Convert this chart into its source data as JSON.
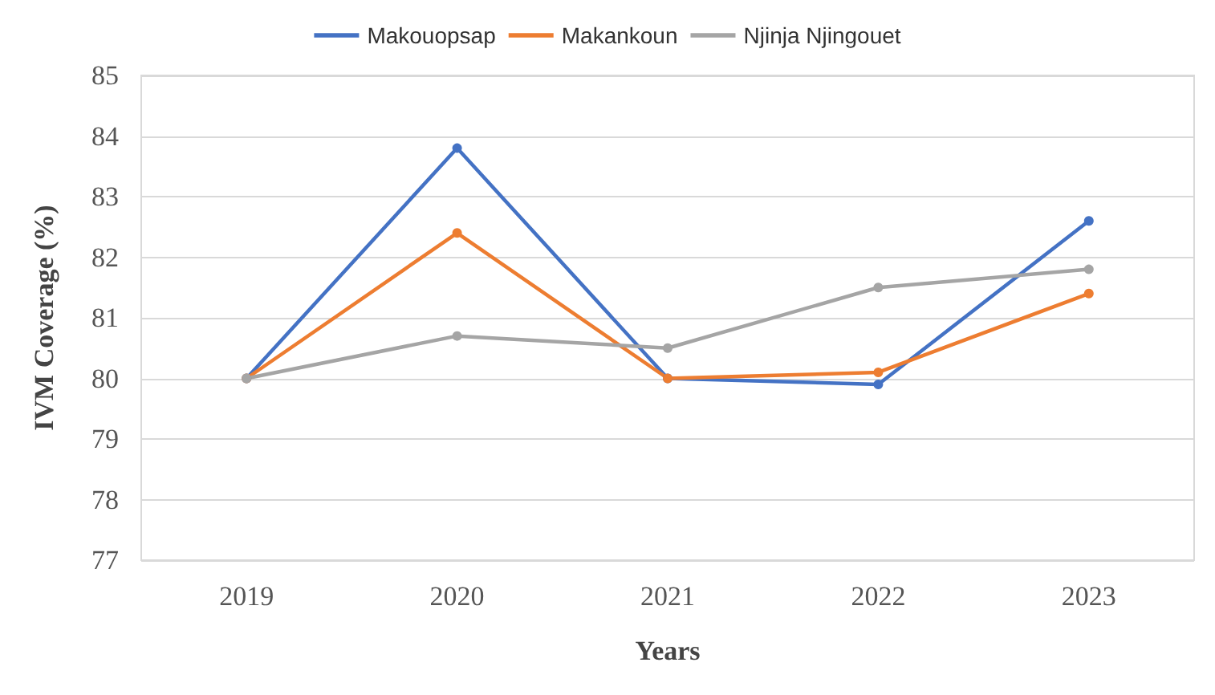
{
  "chart_data": {
    "type": "line",
    "xlabel": "Years",
    "ylabel": "IVM Coverage (%)",
    "categories": [
      "2019",
      "2020",
      "2021",
      "2022",
      "2023"
    ],
    "series": [
      {
        "name": "Makouopsap",
        "color": "#4472c4",
        "values": [
          80,
          83.8,
          80,
          79.9,
          82.6
        ]
      },
      {
        "name": "Makankoun",
        "color": "#ed7d31",
        "values": [
          80,
          82.4,
          80,
          80.1,
          81.4
        ]
      },
      {
        "name": "Njinja Njingouet",
        "color": "#a5a5a5",
        "values": [
          80,
          80.7,
          80.5,
          81.5,
          81.8
        ]
      }
    ],
    "ylim": [
      77,
      85
    ],
    "yticks": [
      77,
      78,
      79,
      80,
      81,
      82,
      83,
      84,
      85
    ],
    "grid": "y",
    "legend": "top",
    "marker": "circle",
    "line_style": "solid"
  }
}
